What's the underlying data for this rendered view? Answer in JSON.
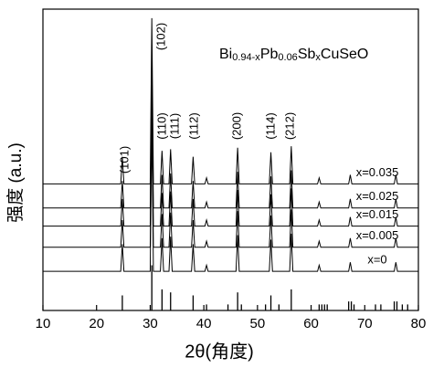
{
  "chart_data": {
    "type": "line",
    "title_parts": [
      "Bi",
      "0.94-x",
      "Pb",
      "0.06",
      "Sb",
      "x",
      "CuSeO"
    ],
    "x_label": "2θ(角度)",
    "y_label": "强度 (a.u.)",
    "xlim": [
      10,
      80
    ],
    "xticks": [
      10,
      20,
      30,
      40,
      50,
      60,
      70,
      80
    ],
    "ylim": [
      0,
      100
    ],
    "x": [
      10,
      24.5,
      24.8,
      25.1,
      30.0,
      30.3,
      30.6,
      31.9,
      32.2,
      32.5,
      33.5,
      33.8,
      34.1,
      37.7,
      38.0,
      38.3,
      40.2,
      40.5,
      40.8,
      46.0,
      46.3,
      46.6,
      52.2,
      52.5,
      52.8,
      56.0,
      56.3,
      56.6,
      61.2,
      61.5,
      61.8,
      67.0,
      67.3,
      67.6,
      75.5,
      75.8,
      76.1,
      80
    ],
    "series": [
      {
        "name": "x=0",
        "color": "#000000",
        "values": [
          13,
          13,
          22,
          13,
          13,
          63,
          13,
          13,
          24,
          13,
          13,
          24.5,
          13,
          13,
          22,
          13,
          13,
          15,
          13,
          13,
          25,
          13,
          13,
          23.5,
          13,
          13,
          25.5,
          13,
          13,
          15,
          13,
          13,
          16,
          13,
          13,
          16,
          13,
          13
        ]
      },
      {
        "name": "x=0.005",
        "color": "#000000",
        "values": [
          21,
          21,
          30,
          21,
          21,
          71,
          21,
          21,
          32,
          21,
          21,
          32.5,
          21,
          21,
          30,
          21,
          21,
          23,
          21,
          21,
          33,
          21,
          21,
          31.5,
          21,
          21,
          33.5,
          21,
          21,
          23,
          21,
          21,
          24,
          21,
          21,
          24,
          21,
          21
        ]
      },
      {
        "name": "x=0.015",
        "color": "#000000",
        "values": [
          28,
          28,
          37,
          28,
          28,
          78,
          28,
          28,
          39,
          28,
          28,
          39.5,
          28,
          28,
          37,
          28,
          28,
          30,
          28,
          28,
          40,
          28,
          28,
          38.5,
          28,
          28,
          40.5,
          28,
          28,
          30,
          28,
          28,
          31,
          28,
          28,
          31,
          28,
          28
        ]
      },
      {
        "name": "x=0.025",
        "color": "#000000",
        "values": [
          34,
          34,
          43,
          34,
          34,
          84,
          34,
          34,
          45,
          34,
          34,
          45.5,
          34,
          34,
          43,
          34,
          34,
          36,
          34,
          34,
          46,
          34,
          34,
          44.5,
          34,
          34,
          46.5,
          34,
          34,
          36,
          34,
          34,
          37,
          34,
          34,
          37,
          34,
          34
        ]
      },
      {
        "name": "x=0.035",
        "color": "#000000",
        "values": [
          42,
          42,
          51,
          42,
          42,
          97,
          42,
          42,
          53,
          42,
          42,
          53.5,
          42,
          42,
          51,
          42,
          42,
          44,
          42,
          42,
          54,
          42,
          42,
          52.5,
          42,
          42,
          54.5,
          42,
          42,
          44,
          42,
          42,
          45,
          42,
          42,
          45,
          42,
          42
        ]
      }
    ],
    "reference": {
      "positions": [
        24.8,
        30.3,
        32.2,
        33.8,
        38.0,
        40.5,
        44.5,
        46.3,
        47.0,
        51.5,
        52.5,
        54.0,
        56.3,
        61.5,
        62.0,
        62.5,
        63.0,
        67.0,
        67.5,
        68.0,
        72.0,
        73.0,
        75.5,
        76.0,
        77.0,
        78.0
      ],
      "intensities": [
        5,
        15,
        7,
        6,
        5,
        2,
        2,
        6,
        2,
        2,
        5,
        2,
        7,
        2,
        2,
        2,
        2,
        3,
        3,
        2,
        2,
        2,
        3,
        3,
        2,
        2
      ]
    },
    "annotations": [
      "(101)",
      "(102)",
      "(110)",
      "(111)",
      "(112)",
      "(200)",
      "(114)",
      "(212)"
    ]
  }
}
